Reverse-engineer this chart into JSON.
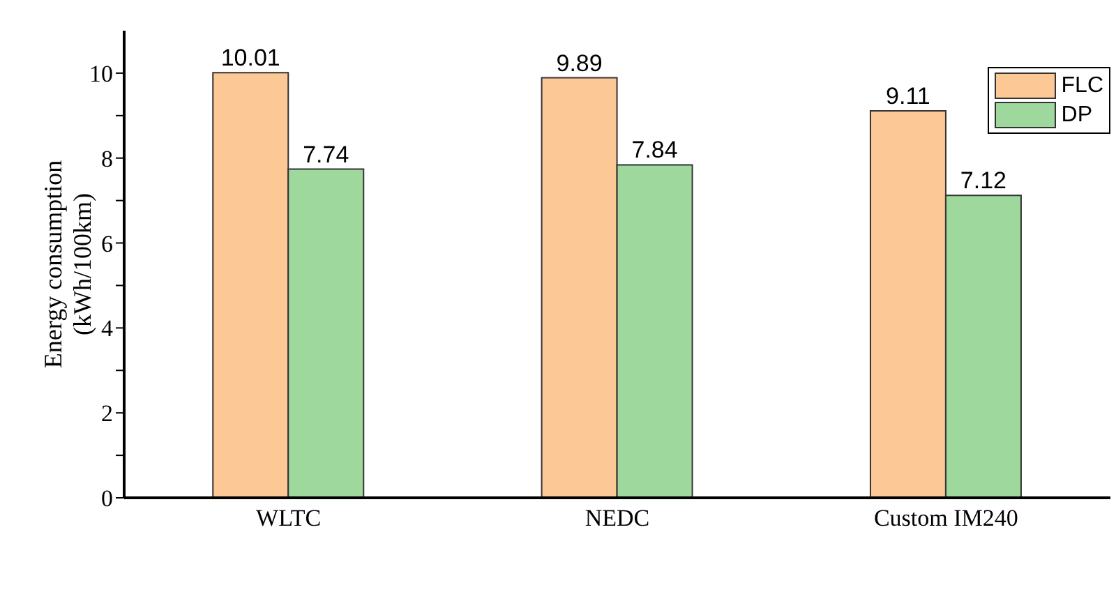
{
  "chart_data": {
    "type": "bar",
    "ylabel": "Energy consumption (kWh/100km)",
    "categories": [
      "WLTC",
      "NEDC",
      "Custom IM240"
    ],
    "series": [
      {
        "name": "FLC",
        "color": "#fbc896",
        "values": [
          10.01,
          9.89,
          9.11
        ]
      },
      {
        "name": "DP",
        "color": "#9fd89c",
        "values": [
          7.74,
          7.84,
          7.12
        ]
      }
    ],
    "ylim": [
      0,
      11
    ],
    "yticks": [
      0,
      {
        "value": 1,
        "label": null
      },
      2,
      {
        "value": 3,
        "label": null
      },
      4,
      {
        "value": 5,
        "label": null
      },
      6,
      {
        "value": 7,
        "label": null
      },
      8,
      {
        "value": 9,
        "label": null
      },
      10
    ],
    "data_labels": true,
    "legend": "top right",
    "grid": false
  }
}
